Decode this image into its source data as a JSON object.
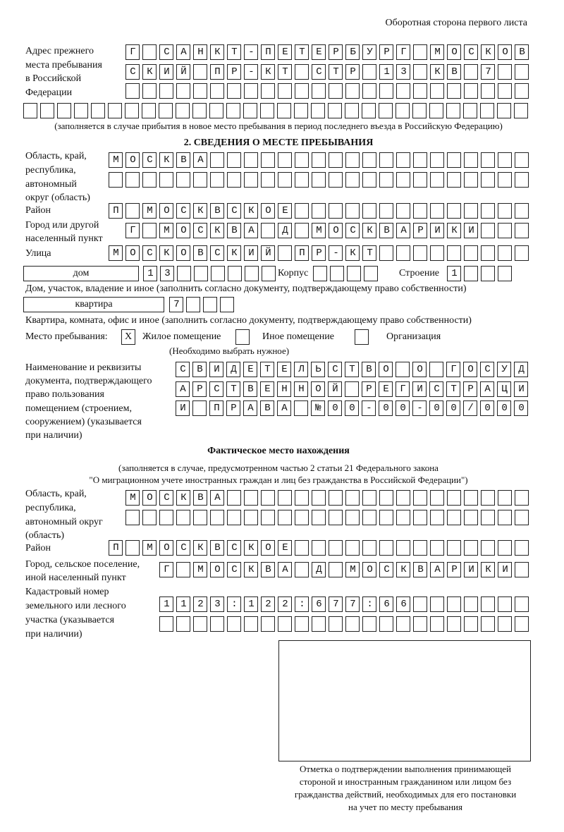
{
  "header": "Оборотная сторона первого листа",
  "prev_address": {
    "label": [
      "Адрес прежнего",
      "места пребывания",
      "в Российской",
      "Федерации"
    ],
    "rows": [
      "Г САНКТ-ПЕТЕРБУРГ МОСКОВ",
      "СКИЙ ПР-КТ СТР 13 КВ 7",
      "",
      ""
    ],
    "note": "(заполняется в случае прибытия в новое место пребывания в период последнего въезда в Российскую Федерацию)"
  },
  "section2": {
    "title": "2. СВЕДЕНИЯ О МЕСТЕ ПРЕБЫВАНИЯ",
    "region_label": [
      "Область, край,",
      "республика,",
      "автономный",
      "округ (область)"
    ],
    "region_rows": [
      "МОСКВА",
      ""
    ],
    "district_label": "Район",
    "district": "П МОСКВСКОЕ",
    "city_label": [
      "Город или другой",
      "населенный пункт"
    ],
    "city": "Г МОСКВА Д МОСКВАРИКИ",
    "street_label": "Улица",
    "street": "МОСКОВСКИЙ ПР-КТ",
    "house_type": "дом",
    "house": "13",
    "korpus_label": "Корпус",
    "korpus": "",
    "building_label": "Строение",
    "building": "1",
    "house_note": "Дом, участок, владение и иное (заполнить согласно документу, подтверждающему право собственности)",
    "flat_type": "квартира",
    "flat": "7",
    "flat_note": "Квартира, комната, офис и иное (заполнить согласно документу, подтверждающему право собственности)",
    "stay_label": "Место пребывания:",
    "stay_options": [
      {
        "label": "Жилое помещение",
        "mark": "Х"
      },
      {
        "label": "Иное помещение",
        "mark": ""
      },
      {
        "label": "Организация",
        "mark": ""
      }
    ],
    "stay_note": "(Необходимо выбрать нужное)",
    "doc_label": [
      "Наименование и реквизиты",
      "документа, подтверждающего",
      "право пользования",
      "помещением (строением,",
      "сооружением) (указывается",
      "при наличии)"
    ],
    "doc_rows": [
      "СВИДЕТЕЛЬСТВО О ГОСУД",
      "АРСТВЕННОЙ РЕГИСТРАЦИ",
      "И ПРАВА №00-00-00/000"
    ]
  },
  "actual": {
    "title": "Фактическое место нахождения",
    "note": [
      "(заполняется в случае, предусмотренном частью 2 статьи 21 Федерального закона",
      "\"О миграционном учете иностранных граждан и лиц без гражданства в Российской Федерации\")"
    ],
    "region_label": [
      "Область, край,",
      "республика,",
      "автономный округ",
      "(область)"
    ],
    "region_rows": [
      "МОСКВА",
      ""
    ],
    "district_label": "Район",
    "district": "П МОСКВСКОЕ",
    "city_label": [
      "Город, сельское поселение,",
      "иной населенный пункт"
    ],
    "city": "Г МОСКВА Д МОСКВАРИКИ",
    "cadastre_label": [
      "Кадастровый номер",
      "земельного или лесного",
      "участка (указывается",
      "при наличии)"
    ],
    "cadastre_rows": [
      "1123:122:677:66",
      ""
    ]
  },
  "confirmation": [
    "Отметка о подтверждении выполнения принимающей",
    "стороной и иностранным гражданином или лицом без",
    "гражданства действий, необходимых для его постановки",
    "на учет по месту пребывания"
  ]
}
